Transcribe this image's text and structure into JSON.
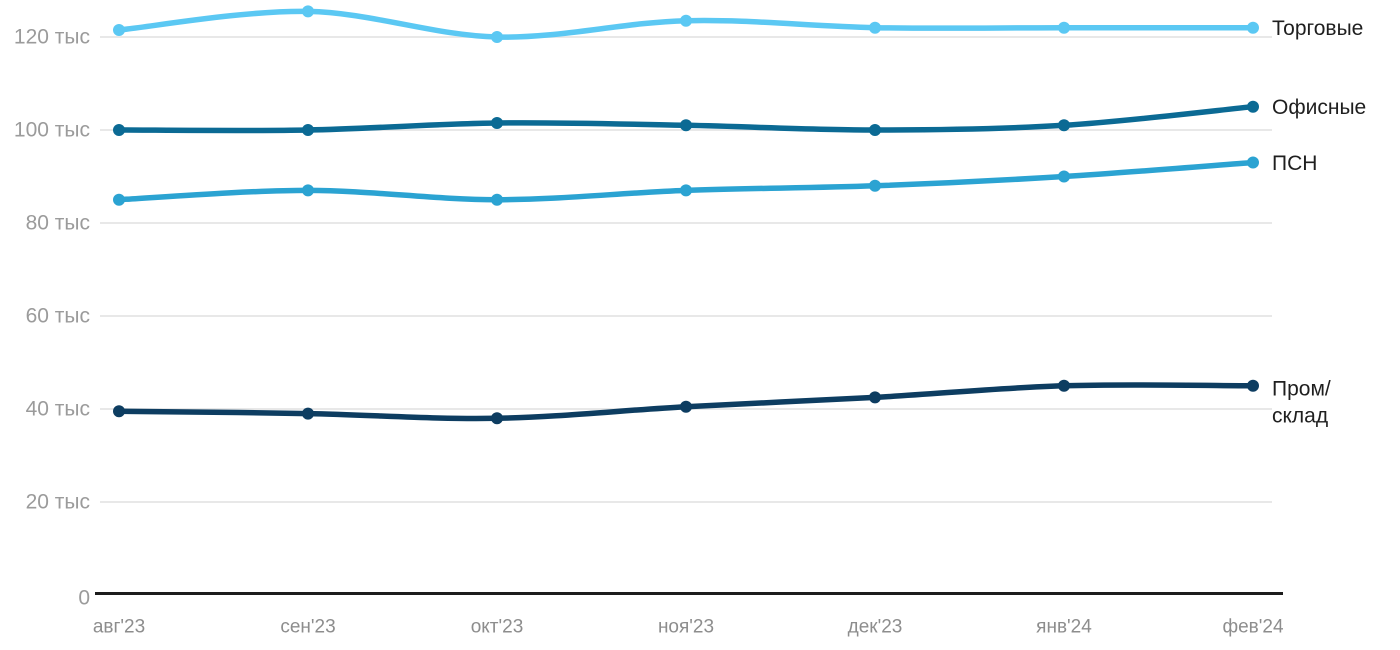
{
  "chart_data": {
    "type": "line",
    "title": "",
    "xlabel": "",
    "ylabel": "",
    "unit": "тыс",
    "categories": [
      "авг'23",
      "сен'23",
      "окт'23",
      "ноя'23",
      "дек'23",
      "янв'24",
      "фев'24"
    ],
    "series": [
      {
        "name": "Торговые",
        "label_lines": [
          "Торговые"
        ],
        "color": "#5bc8f3",
        "values": [
          121.5,
          125.5,
          120,
          123.5,
          122,
          122,
          122
        ]
      },
      {
        "name": "Офисные",
        "label_lines": [
          "Офисные"
        ],
        "color": "#0b6a94",
        "values": [
          100,
          100,
          101.5,
          101,
          100,
          101,
          105
        ]
      },
      {
        "name": "ПСН",
        "label_lines": [
          "ПСН"
        ],
        "color": "#2ba3d2",
        "values": [
          85,
          87,
          85,
          87,
          88,
          90,
          93
        ]
      },
      {
        "name": "Пром/склад",
        "label_lines": [
          "Пром/",
          "склад"
        ],
        "color": "#0d3d61",
        "values": [
          39.5,
          39,
          38,
          40.5,
          42.5,
          45,
          45
        ]
      }
    ],
    "yticks": [
      0,
      20,
      40,
      60,
      80,
      100,
      120
    ],
    "ytick_labels": [
      "0",
      "20 тыс",
      "40 тыс",
      "60 тыс",
      "80 тыс",
      "100 тыс",
      "120 тыс"
    ],
    "ylim": [
      0,
      128
    ],
    "grid": true,
    "legend_position": "right-of-line-end",
    "colors": {
      "gridline": "#e8e8e8",
      "axis_line": "#1c1c1c",
      "ytick_label": "#9b9b9b",
      "xtick_label": "#8d8d8d",
      "series_label": "#1f1f1f",
      "background": "#ffffff"
    }
  }
}
